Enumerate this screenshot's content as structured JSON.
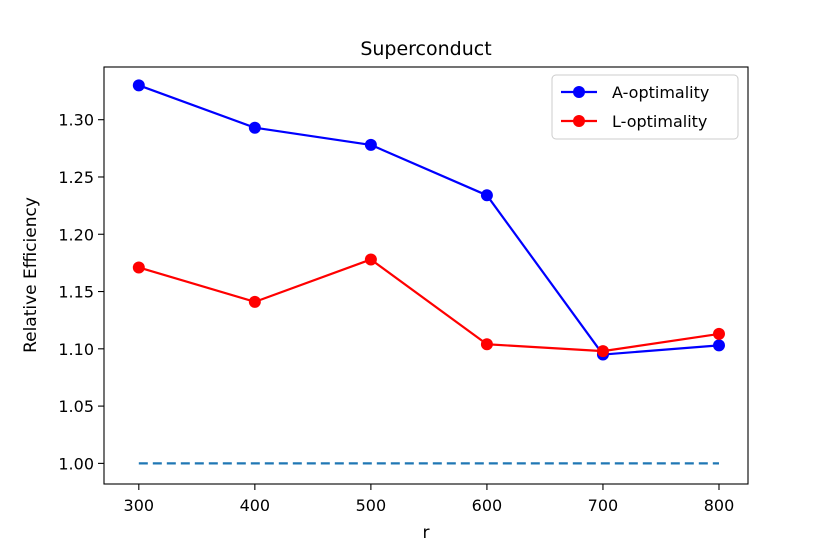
{
  "chart_data": {
    "type": "line",
    "title": "Superconduct",
    "xlabel": "r",
    "ylabel": "Relative Efficiency",
    "x": [
      300,
      400,
      500,
      600,
      700,
      800
    ],
    "xticks": [
      "300",
      "400",
      "500",
      "600",
      "700",
      "800"
    ],
    "yticks": [
      "1.00",
      "1.05",
      "1.10",
      "1.15",
      "1.20",
      "1.25",
      "1.30"
    ],
    "xlim": [
      270,
      825
    ],
    "ylim": [
      0.982,
      1.346
    ],
    "series": [
      {
        "name": "A-optimality",
        "color": "#0000ff",
        "marker": "circle",
        "values": [
          1.33,
          1.293,
          1.278,
          1.234,
          1.095,
          1.103
        ]
      },
      {
        "name": "L-optimality",
        "color": "#ff0000",
        "marker": "circle",
        "values": [
          1.171,
          1.141,
          1.178,
          1.104,
          1.098,
          1.113
        ]
      }
    ],
    "baseline": {
      "value": 1.0,
      "color": "#1f77b4",
      "style": "dashed"
    },
    "legend": "top-right",
    "grid": false
  }
}
